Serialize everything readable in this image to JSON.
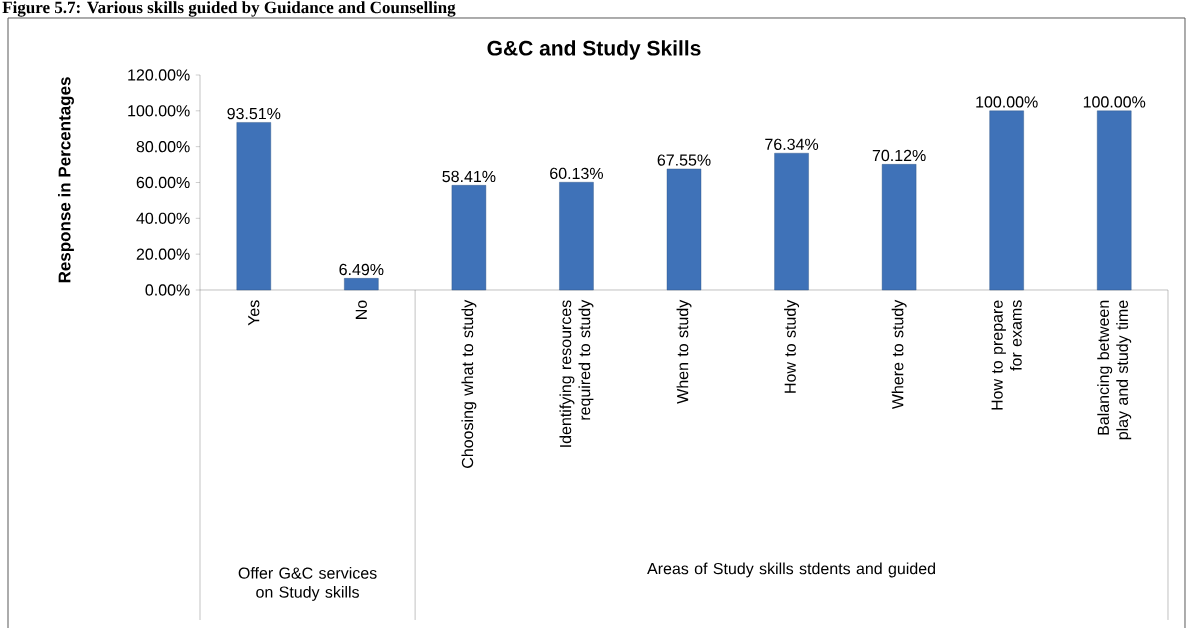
{
  "chart_data": {
    "type": "bar",
    "title": "G&C and Study Skills",
    "ylabel": "Response in Percentages",
    "categories": [
      "Yes",
      "No",
      "Choosing what to study",
      "Identifying resources required to study",
      "When to study",
      "How to study",
      "Where to study",
      "How to prepare for exams",
      "Balancing between play and study time"
    ],
    "values": [
      93.51,
      6.49,
      58.41,
      60.13,
      67.55,
      76.34,
      70.12,
      100,
      100
    ],
    "value_labels": [
      "93.51%",
      "6.49%",
      "58.41%",
      "60.13%",
      "67.55%",
      "76.34%",
      "70.12%",
      "100.00%",
      "100.00%"
    ],
    "color": "#3f72b8",
    "ylim": [
      0,
      120
    ],
    "yticks": [
      {
        "value": 0,
        "label": "0.00%"
      },
      {
        "value": 20,
        "label": "20.00%"
      },
      {
        "value": 40,
        "label": "40.00%"
      },
      {
        "value": 60,
        "label": "60.00%"
      },
      {
        "value": 80,
        "label": "80.00%"
      },
      {
        "value": 100,
        "label": "100.00%"
      },
      {
        "value": 120,
        "label": "120.00%"
      }
    ],
    "annotations": [
      "Figure 5.7: Various skills guided by Guidance and Counselling",
      "Offer G&C services on Study skills",
      "Areas of Study skills stdents and guided"
    ]
  }
}
